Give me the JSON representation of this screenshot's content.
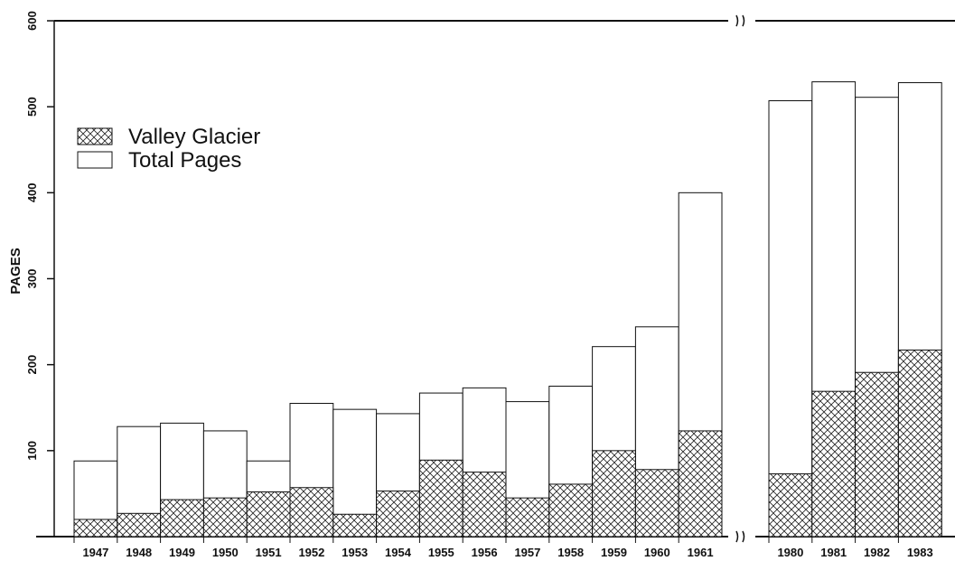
{
  "chart_data": {
    "type": "bar",
    "y_label": "PAGES",
    "categories": [
      "1947",
      "1948",
      "1949",
      "1950",
      "1951",
      "1952",
      "1953",
      "1954",
      "1955",
      "1956",
      "1957",
      "1958",
      "1959",
      "1960",
      "1961",
      "1980",
      "1981",
      "1982",
      "1983"
    ],
    "series": [
      {
        "name": "Total Pages",
        "color": "#ffffff",
        "values": [
          88,
          128,
          132,
          123,
          88,
          155,
          148,
          143,
          167,
          173,
          157,
          175,
          221,
          244,
          400,
          507,
          529,
          511,
          528
        ]
      },
      {
        "name": "Valley Glacier",
        "color": "crosshatch",
        "values": [
          20,
          27,
          43,
          45,
          52,
          57,
          26,
          53,
          89,
          75,
          45,
          61,
          100,
          78,
          123,
          73,
          169,
          191,
          217
        ]
      }
    ],
    "ylim": [
      0,
      600
    ],
    "yticks": [
      100,
      200,
      300,
      400,
      500,
      600
    ]
  }
}
